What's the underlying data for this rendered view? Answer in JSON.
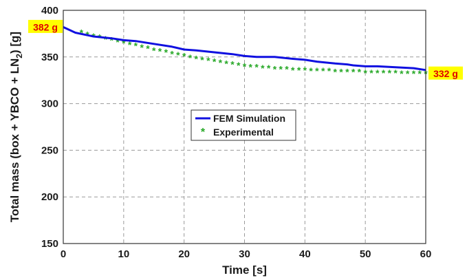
{
  "chart_data": {
    "type": "line",
    "xlabel": "Time [s]",
    "ylabel_parts": {
      "pre": "Total mass (box + YBCO + LN",
      "sub": "2",
      "post": ") [g]"
    },
    "xlim": [
      0,
      60
    ],
    "ylim": [
      150,
      400
    ],
    "xticks": [
      "0",
      "10",
      "20",
      "30",
      "40",
      "50",
      "60"
    ],
    "yticks": [
      "150",
      "200",
      "250",
      "300",
      "350",
      "400"
    ],
    "grid": true,
    "legend_position": "center",
    "series": [
      {
        "name": "FEM Simulation",
        "style": "line",
        "color": "#1010e0",
        "x": [
          0,
          2,
          5,
          8,
          10,
          12,
          15,
          18,
          20,
          22,
          25,
          28,
          30,
          32,
          35,
          38,
          40,
          42,
          45,
          47,
          48,
          50,
          52,
          55,
          58,
          60
        ],
        "y": [
          382,
          376,
          372,
          370,
          368,
          367,
          364,
          361,
          358,
          357,
          355,
          353,
          351,
          350,
          350,
          348,
          347,
          345,
          343,
          342,
          341,
          340,
          340,
          339,
          338,
          336
        ]
      },
      {
        "name": "Experimental",
        "style": "markers",
        "color": "#27a827",
        "x": [
          3,
          4,
          5,
          6,
          7,
          8,
          9,
          10,
          11,
          12,
          13,
          14,
          15,
          16,
          17,
          18,
          19,
          20,
          21,
          22,
          23,
          24,
          25,
          26,
          27,
          28,
          29,
          30,
          31,
          32,
          33,
          34,
          35,
          36,
          37,
          38,
          39,
          40,
          41,
          42,
          43,
          44,
          45,
          46,
          47,
          48,
          49,
          50,
          51,
          52,
          53,
          54,
          55,
          56,
          57,
          58,
          59,
          60
        ],
        "y": [
          376,
          374,
          372,
          371,
          369,
          368,
          366,
          365,
          363,
          362,
          360,
          359,
          357,
          356,
          355,
          353,
          352,
          351,
          349,
          348,
          347,
          346,
          345,
          344,
          343,
          342,
          341,
          340,
          339,
          339,
          338,
          338,
          337,
          337,
          337,
          336,
          336,
          336,
          335,
          335,
          335,
          335,
          334,
          334,
          334,
          334,
          334,
          333,
          333,
          333,
          333,
          333,
          333,
          332,
          332,
          332,
          332,
          332
        ]
      }
    ],
    "annotations": [
      {
        "text": "382 g",
        "x": 0,
        "y": 382,
        "side": "left",
        "box_color": "#ffff00"
      },
      {
        "text": "332 g",
        "x": 60,
        "y": 332,
        "side": "right",
        "box_color": "#ffff00"
      }
    ]
  }
}
